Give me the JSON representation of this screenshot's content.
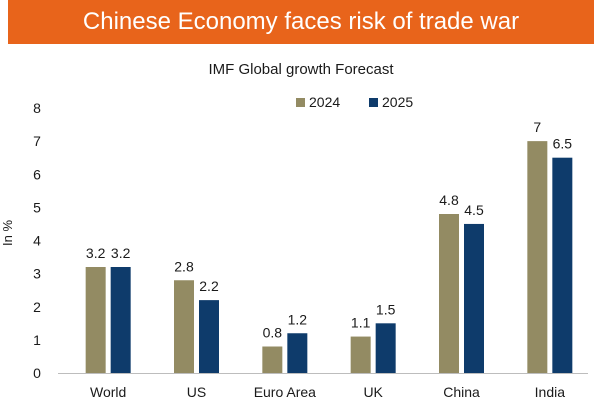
{
  "banner": {
    "title": "Chinese Economy faces risk of trade war"
  },
  "chart_data": {
    "type": "bar",
    "title": "IMF Global growth Forecast",
    "xlabel": "",
    "ylabel": "In %",
    "ylim": [
      0,
      8
    ],
    "yticks": [
      0,
      1,
      2,
      3,
      4,
      5,
      6,
      7,
      8
    ],
    "grid": false,
    "legend_position": "top-right",
    "categories": [
      "World",
      "US",
      "Euro Area",
      "UK",
      "China",
      "India"
    ],
    "series": [
      {
        "name": "2024",
        "color": "#938b63",
        "values": [
          3.2,
          2.8,
          0.8,
          1.1,
          4.8,
          7
        ]
      },
      {
        "name": "2025",
        "color": "#0e3b6b",
        "values": [
          3.2,
          2.2,
          1.2,
          1.5,
          4.5,
          6.5
        ]
      }
    ]
  }
}
